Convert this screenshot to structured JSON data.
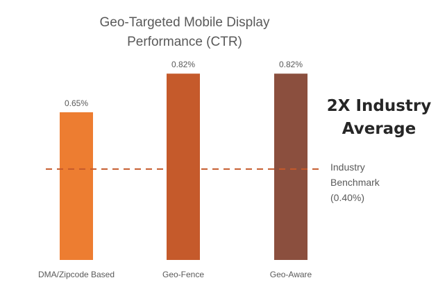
{
  "chart_data": {
    "type": "bar",
    "title_lines": [
      "Geo-Targeted Mobile Display",
      "Performance (CTR)"
    ],
    "categories": [
      "DMA/Zipcode Based",
      "Geo-Fence",
      "Geo-Aware"
    ],
    "values": [
      0.65,
      0.82,
      0.82
    ],
    "data_labels": [
      "0.65%",
      "0.82%",
      "0.82%"
    ],
    "colors": [
      "#ED7D31",
      "#C55A2B",
      "#8B4F3E"
    ],
    "ylim": [
      0,
      0.9
    ],
    "grid": false,
    "benchmark": {
      "value": 0.4,
      "label_lines": [
        "Industry",
        "Benchmark",
        "(0.40%)"
      ],
      "color": "#C55A2B"
    },
    "callout_lines": [
      "2X Industry",
      "Average"
    ]
  }
}
